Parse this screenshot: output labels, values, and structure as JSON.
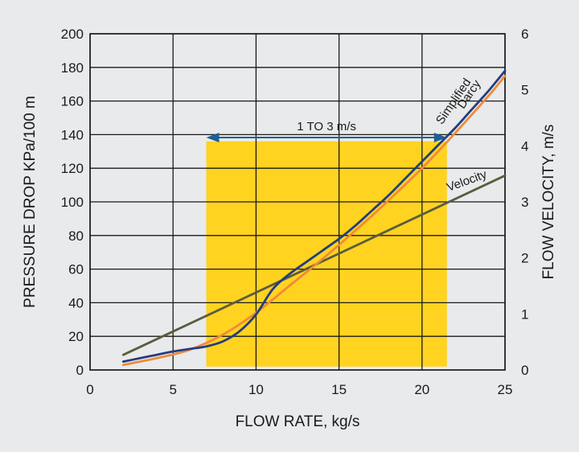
{
  "chart_data": {
    "type": "line",
    "xlabel": "FLOW RATE, kg/s",
    "ylabel": "PRESSURE DROP KPa/100 m",
    "y2label": "FLOW VELOCITY, m/s",
    "xlim": [
      0,
      25
    ],
    "ylim": [
      0,
      200
    ],
    "y2lim": [
      0,
      6
    ],
    "x_ticks": [
      "0",
      "5",
      "10",
      "15",
      "20",
      "25"
    ],
    "y_ticks": [
      "0",
      "20",
      "40",
      "60",
      "80",
      "100",
      "120",
      "140",
      "160",
      "180",
      "200"
    ],
    "y2_ticks": [
      "0",
      "1",
      "2",
      "3",
      "4",
      "5",
      "6"
    ],
    "grid": true,
    "colors": {
      "simplified": "#253d7f",
      "darcy": "#f08a3a",
      "velocity": "#5a5d3e",
      "band": "#ffd320",
      "arrow": "#1f5f92",
      "background": "#e9eaeb",
      "grid": "#1a1a1a"
    },
    "shaded_region": {
      "x": [
        7,
        21.5
      ],
      "y": [
        2,
        136
      ]
    },
    "annotation": {
      "text": "1 TO 3 m/s",
      "x_from": 7,
      "x_to": 21.5,
      "y": 145
    },
    "series": [
      {
        "name": "Simplified",
        "axis": "left",
        "x": [
          2,
          3,
          4,
          5,
          6,
          7,
          8,
          9,
          10,
          11,
          12,
          13,
          14,
          15,
          16,
          17,
          18,
          19,
          20,
          21,
          22,
          23,
          24,
          25
        ],
        "y": [
          5,
          7,
          9,
          11,
          12.5,
          14,
          17,
          23,
          33,
          48,
          57,
          64,
          71,
          78,
          86,
          95,
          104,
          114,
          124,
          134,
          144,
          155,
          166,
          178
        ]
      },
      {
        "name": "Darcy",
        "axis": "left",
        "x": [
          2,
          4,
          6,
          8,
          10,
          12,
          14,
          16,
          18,
          20,
          22,
          24,
          25
        ],
        "y": [
          3,
          7,
          12,
          21,
          34,
          50,
          66,
          83,
          101,
          120,
          141,
          163,
          175
        ]
      },
      {
        "name": "Velocity",
        "axis": "right",
        "x": [
          2,
          25
        ],
        "y": [
          0.27,
          3.47
        ]
      }
    ]
  }
}
